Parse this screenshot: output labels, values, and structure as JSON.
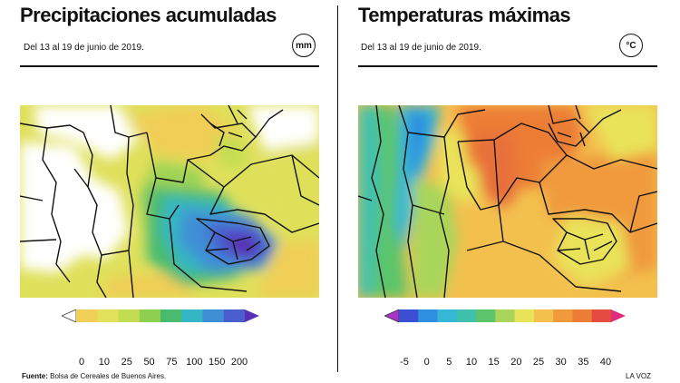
{
  "precipitation": {
    "title": "Precipitaciones acumuladas",
    "subtitle": "Del 13 al 19 de junio de 2019.",
    "unit": "mm",
    "legend": {
      "colors": [
        "#ffffff",
        "#f1ce57",
        "#e2e15a",
        "#c3dd52",
        "#8fcf4f",
        "#49bb6f",
        "#34b6c4",
        "#3f8fd6",
        "#4a5ecf",
        "#5a2fb3"
      ],
      "labels": [
        "0",
        "10",
        "25",
        "50",
        "75",
        "100",
        "150",
        "200"
      ]
    }
  },
  "temperature": {
    "title": "Temperaturas máximas",
    "subtitle": "Del 13 al 19 de junio de 2019.",
    "unit": "°C",
    "legend": {
      "colors": [
        "#a833c7",
        "#3d4fd1",
        "#2f8fe0",
        "#35b7d6",
        "#40c1b0",
        "#5cc46a",
        "#a9d55a",
        "#e9e35a",
        "#f3c04e",
        "#f09a3c",
        "#ec7d36",
        "#e54b3e",
        "#de2b7a"
      ],
      "labels": [
        "-5",
        "0",
        "5",
        "10",
        "15",
        "20",
        "25",
        "30",
        "35",
        "40"
      ]
    }
  },
  "footer": {
    "source_label": "Fuente:",
    "source_text": "Bolsa de Cereales de Buenos Aires.",
    "brand": "LA VOZ"
  }
}
